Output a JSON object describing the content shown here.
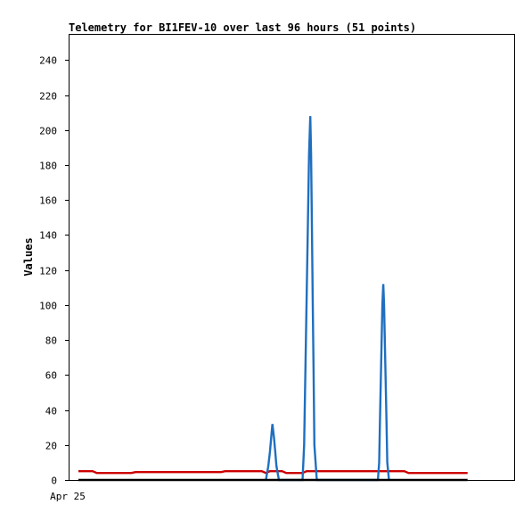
{
  "chart_data": {
    "type": "line",
    "title": "Telemetry for BI1FEV-10 over last 96 hours (51 points)",
    "xlabel": "",
    "ylabel": "Values",
    "x_tick_labels": [
      "Apr 25"
    ],
    "xlim": [
      0,
      96
    ],
    "ylim": [
      0,
      255
    ],
    "y_ticks": [
      0,
      20,
      40,
      60,
      80,
      100,
      120,
      140,
      160,
      180,
      200,
      220,
      240
    ],
    "grid": false,
    "legend": "none",
    "series": [
      {
        "color": "#cc0000",
        "points": [
          [
            0,
            5
          ],
          [
            3.5,
            5
          ],
          [
            4.5,
            4
          ],
          [
            9,
            4
          ],
          [
            13,
            4
          ],
          [
            14,
            4.5
          ],
          [
            25,
            4.5
          ],
          [
            35,
            4.5
          ],
          [
            36,
            5
          ],
          [
            45,
            5
          ],
          [
            46,
            4
          ],
          [
            47,
            5
          ],
          [
            50,
            5
          ],
          [
            51,
            4
          ],
          [
            55,
            4
          ],
          [
            56,
            5
          ],
          [
            60,
            5
          ],
          [
            70,
            5
          ],
          [
            80,
            5
          ],
          [
            81,
            4
          ],
          [
            85,
            4
          ],
          [
            95.5,
            4
          ]
        ]
      },
      {
        "color": "#1f6fbf",
        "points": [
          [
            46,
            0
          ],
          [
            46.6,
            8
          ],
          [
            47,
            16
          ],
          [
            47.3,
            24
          ],
          [
            47.6,
            32
          ],
          [
            48,
            24
          ],
          [
            48.3,
            16
          ],
          [
            48.6,
            8
          ],
          [
            49.2,
            0
          ],
          [
            55,
            0
          ],
          [
            55.4,
            20
          ],
          [
            55.7,
            62
          ],
          [
            56,
            104
          ],
          [
            56.3,
            146
          ],
          [
            56.6,
            186
          ],
          [
            56.9,
            208
          ],
          [
            57.1,
            186
          ],
          [
            57.3,
            146
          ],
          [
            57.5,
            104
          ],
          [
            57.7,
            62
          ],
          [
            57.9,
            20
          ],
          [
            58.5,
            0
          ],
          [
            73.5,
            0
          ],
          [
            73.8,
            10
          ],
          [
            74,
            34
          ],
          [
            74.2,
            56
          ],
          [
            74.4,
            78
          ],
          [
            74.6,
            100
          ],
          [
            74.8,
            112
          ],
          [
            75,
            100
          ],
          [
            75.2,
            78
          ],
          [
            75.4,
            56
          ],
          [
            75.6,
            34
          ],
          [
            75.8,
            10
          ],
          [
            76.2,
            0
          ]
        ]
      },
      {
        "color": "#000000",
        "points": [
          [
            0,
            0
          ],
          [
            95.5,
            0
          ]
        ]
      }
    ]
  }
}
